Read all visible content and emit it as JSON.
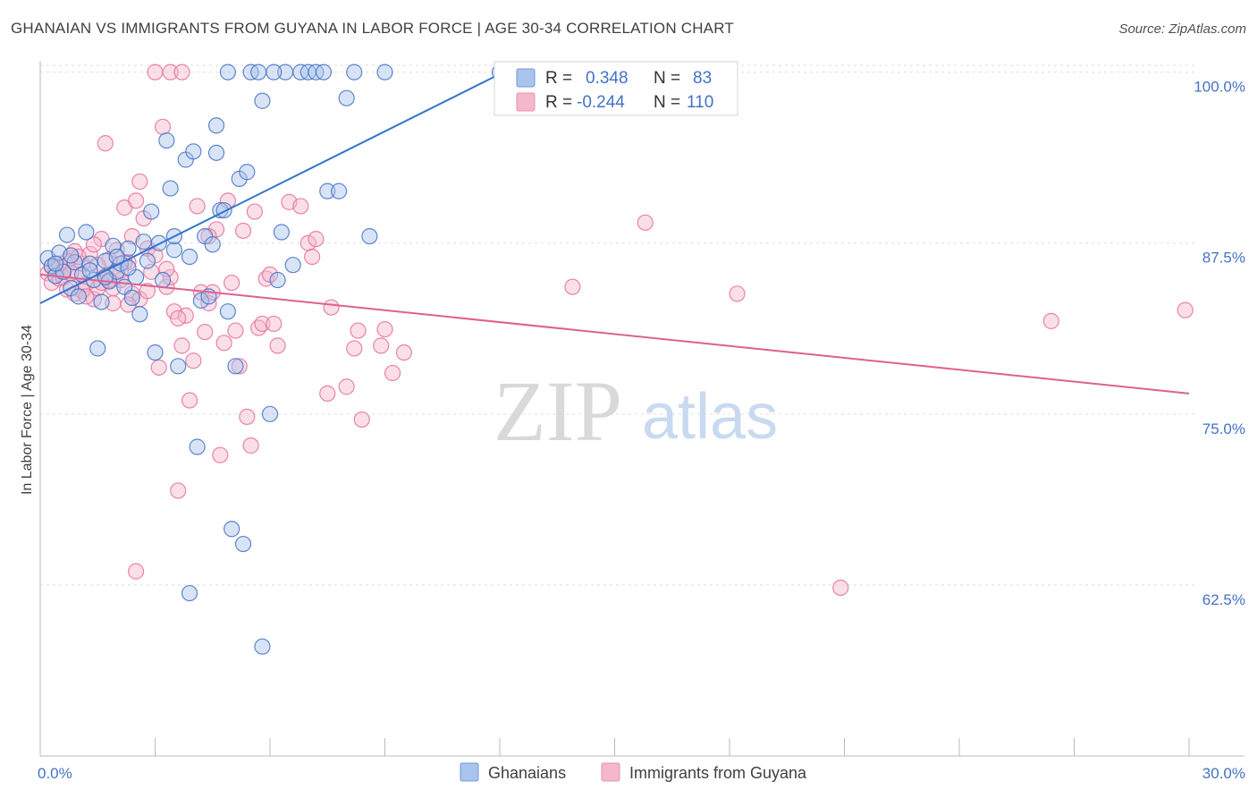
{
  "title": "GHANAIAN VS IMMIGRANTS FROM GUYANA IN LABOR FORCE | AGE 30-34 CORRELATION CHART",
  "source": "Source: ZipAtlas.com",
  "watermark": {
    "zip": "ZIP",
    "atlas": "atlas"
  },
  "colors": {
    "blue": "#4472c4",
    "blue_fill": "#a9c4ec",
    "blue_line": "#2f74d0",
    "pink": "#e5709b",
    "pink_fill": "#f4b8cb",
    "pink_line": "#e0608e",
    "grid": "#dddddd",
    "axis": "#bbbbbb"
  },
  "legend": {
    "r_label": "R =",
    "n_label": "N =",
    "blue": {
      "r": "0.348",
      "n": "83"
    },
    "pink": {
      "r": "-0.244",
      "n": "110"
    }
  },
  "bottom_legend": {
    "blue": "Ghanaians",
    "pink": "Immigrants from Guyana"
  },
  "chart_data": {
    "type": "scatter",
    "xlabel": "",
    "ylabel": "In Labor Force | Age 30-34",
    "xlim": [
      0,
      30
    ],
    "ylim": [
      50,
      100.5
    ],
    "x_tick_labels": [
      {
        "value": 0,
        "label": "0.0%"
      },
      {
        "value": 30,
        "label": "30.0%"
      }
    ],
    "y_tick_labels": [
      {
        "value": 100,
        "label": "100.0%"
      },
      {
        "value": 87.5,
        "label": "87.5%"
      },
      {
        "value": 75,
        "label": "75.0%"
      },
      {
        "value": 62.5,
        "label": "62.5%"
      }
    ],
    "grid": true,
    "legend_position": "top-center",
    "series": [
      {
        "name": "Ghanaians",
        "color": "#4472c4",
        "trend": {
          "x": [
            0,
            12.1
          ],
          "y": [
            83.1,
            100
          ]
        },
        "points": [
          [
            0.2,
            86.4
          ],
          [
            0.3,
            85.8
          ],
          [
            0.4,
            85.1
          ],
          [
            0.5,
            86.8
          ],
          [
            0.6,
            85.4
          ],
          [
            0.7,
            88.1
          ],
          [
            0.8,
            84.2
          ],
          [
            0.9,
            86.1
          ],
          [
            1.0,
            83.6
          ],
          [
            1.1,
            85.2
          ],
          [
            1.2,
            88.3
          ],
          [
            1.3,
            86.0
          ],
          [
            1.4,
            84.8
          ],
          [
            1.5,
            79.8
          ],
          [
            1.6,
            83.2
          ],
          [
            1.7,
            86.2
          ],
          [
            1.8,
            84.7
          ],
          [
            1.9,
            87.3
          ],
          [
            2.0,
            85.4
          ],
          [
            2.1,
            86.0
          ],
          [
            2.2,
            84.3
          ],
          [
            2.3,
            87.1
          ],
          [
            2.4,
            83.5
          ],
          [
            2.5,
            85.0
          ],
          [
            2.6,
            82.3
          ],
          [
            2.7,
            87.6
          ],
          [
            2.8,
            86.2
          ],
          [
            2.9,
            89.8
          ],
          [
            3.0,
            79.5
          ],
          [
            3.1,
            87.5
          ],
          [
            3.2,
            84.8
          ],
          [
            3.3,
            95.0
          ],
          [
            3.4,
            91.5
          ],
          [
            3.5,
            87.0
          ],
          [
            3.6,
            78.5
          ],
          [
            3.8,
            93.6
          ],
          [
            3.9,
            86.5
          ],
          [
            4.0,
            94.2
          ],
          [
            4.1,
            72.6
          ],
          [
            4.2,
            83.3
          ],
          [
            4.3,
            88.0
          ],
          [
            4.4,
            83.6
          ],
          [
            4.5,
            87.4
          ],
          [
            4.6,
            96.1
          ],
          [
            4.7,
            89.9
          ],
          [
            4.8,
            89.9
          ],
          [
            4.9,
            82.5
          ],
          [
            5.0,
            66.6
          ],
          [
            5.1,
            78.5
          ],
          [
            5.2,
            92.2
          ],
          [
            5.3,
            65.5
          ],
          [
            5.4,
            92.7
          ],
          [
            5.5,
            100
          ],
          [
            5.7,
            100
          ],
          [
            5.8,
            97.9
          ],
          [
            6.0,
            75.0
          ],
          [
            6.2,
            84.8
          ],
          [
            6.3,
            88.3
          ],
          [
            6.4,
            100
          ],
          [
            6.6,
            85.9
          ],
          [
            6.8,
            100
          ],
          [
            7.0,
            100
          ],
          [
            7.2,
            100
          ],
          [
            7.4,
            100
          ],
          [
            7.5,
            91.3
          ],
          [
            7.8,
            91.3
          ],
          [
            8.0,
            98.1
          ],
          [
            8.2,
            100
          ],
          [
            8.6,
            88.0
          ],
          [
            9.0,
            100
          ],
          [
            12.0,
            100
          ],
          [
            3.9,
            61.9
          ],
          [
            4.6,
            94.1
          ],
          [
            5.8,
            58.0
          ],
          [
            1.3,
            85.5
          ],
          [
            2.3,
            85.7
          ],
          [
            0.8,
            86.6
          ],
          [
            3.5,
            88.0
          ],
          [
            2.0,
            86.5
          ],
          [
            1.7,
            85.0
          ],
          [
            0.4,
            86.0
          ],
          [
            6.1,
            100
          ],
          [
            4.9,
            100
          ]
        ]
      },
      {
        "name": "Immigrants from Guyana",
        "color": "#e5709b",
        "trend": {
          "x": [
            0,
            30
          ],
          "y": [
            85.2,
            76.5
          ]
        },
        "points": [
          [
            0.2,
            85.3
          ],
          [
            0.3,
            84.6
          ],
          [
            0.4,
            85.7
          ],
          [
            0.5,
            84.9
          ],
          [
            0.6,
            85.5
          ],
          [
            0.7,
            84.1
          ],
          [
            0.8,
            86.4
          ],
          [
            0.9,
            83.8
          ],
          [
            1.0,
            85.2
          ],
          [
            1.1,
            86.0
          ],
          [
            1.2,
            84.5
          ],
          [
            1.3,
            86.7
          ],
          [
            1.4,
            83.4
          ],
          [
            1.5,
            84.2
          ],
          [
            1.6,
            87.8
          ],
          [
            1.7,
            85.1
          ],
          [
            1.8,
            86.3
          ],
          [
            1.9,
            83.1
          ],
          [
            2.0,
            87.0
          ],
          [
            2.1,
            84.8
          ],
          [
            2.2,
            90.1
          ],
          [
            2.3,
            86.1
          ],
          [
            2.4,
            83.8
          ],
          [
            2.5,
            90.6
          ],
          [
            2.6,
            92.0
          ],
          [
            2.7,
            89.3
          ],
          [
            2.8,
            87.1
          ],
          [
            2.9,
            85.4
          ],
          [
            3.0,
            86.6
          ],
          [
            3.1,
            78.4
          ],
          [
            3.2,
            96.0
          ],
          [
            3.3,
            84.3
          ],
          [
            3.4,
            85.0
          ],
          [
            3.5,
            82.5
          ],
          [
            3.6,
            69.4
          ],
          [
            3.7,
            80.0
          ],
          [
            3.8,
            82.2
          ],
          [
            3.9,
            76.0
          ],
          [
            4.0,
            78.9
          ],
          [
            4.1,
            90.2
          ],
          [
            4.2,
            83.9
          ],
          [
            4.3,
            81.0
          ],
          [
            4.4,
            83.1
          ],
          [
            4.5,
            83.9
          ],
          [
            4.6,
            88.5
          ],
          [
            4.7,
            72.0
          ],
          [
            4.8,
            80.2
          ],
          [
            4.9,
            90.6
          ],
          [
            5.0,
            84.6
          ],
          [
            5.1,
            81.1
          ],
          [
            5.2,
            78.5
          ],
          [
            5.3,
            88.4
          ],
          [
            5.4,
            74.8
          ],
          [
            5.5,
            72.7
          ],
          [
            5.6,
            89.8
          ],
          [
            5.7,
            81.3
          ],
          [
            5.8,
            81.6
          ],
          [
            5.9,
            84.9
          ],
          [
            6.0,
            85.2
          ],
          [
            6.1,
            81.6
          ],
          [
            6.2,
            80.0
          ],
          [
            6.5,
            90.5
          ],
          [
            6.8,
            90.2
          ],
          [
            7.0,
            87.5
          ],
          [
            7.1,
            86.5
          ],
          [
            7.2,
            87.8
          ],
          [
            7.5,
            76.5
          ],
          [
            7.6,
            82.8
          ],
          [
            8.0,
            77.0
          ],
          [
            8.2,
            79.8
          ],
          [
            8.3,
            81.1
          ],
          [
            8.4,
            74.6
          ],
          [
            8.9,
            80.0
          ],
          [
            9.0,
            81.2
          ],
          [
            9.2,
            78.0
          ],
          [
            9.5,
            79.5
          ],
          [
            13.9,
            84.3
          ],
          [
            15.8,
            89.0
          ],
          [
            18.2,
            83.8
          ],
          [
            20.9,
            62.3
          ],
          [
            26.4,
            81.8
          ],
          [
            29.9,
            82.6
          ],
          [
            3.0,
            100
          ],
          [
            3.4,
            100
          ],
          [
            3.7,
            100
          ],
          [
            1.7,
            94.8
          ],
          [
            2.5,
            63.5
          ],
          [
            2.2,
            86.1
          ],
          [
            1.1,
            84.0
          ],
          [
            1.4,
            87.4
          ],
          [
            0.6,
            85.0
          ],
          [
            1.9,
            84.2
          ],
          [
            2.6,
            83.4
          ],
          [
            3.3,
            85.6
          ],
          [
            0.9,
            86.9
          ],
          [
            1.5,
            85.9
          ],
          [
            2.4,
            88.0
          ],
          [
            0.5,
            86.0
          ],
          [
            1.2,
            83.6
          ],
          [
            2.8,
            84.0
          ],
          [
            3.6,
            82.0
          ],
          [
            4.4,
            88.0
          ],
          [
            0.3,
            85.8
          ],
          [
            0.7,
            86.2
          ],
          [
            1.0,
            86.5
          ],
          [
            1.8,
            84.8
          ],
          [
            2.1,
            85.5
          ],
          [
            0.8,
            85.3
          ],
          [
            2.3,
            83.0
          ],
          [
            1.6,
            84.6
          ]
        ]
      }
    ]
  }
}
